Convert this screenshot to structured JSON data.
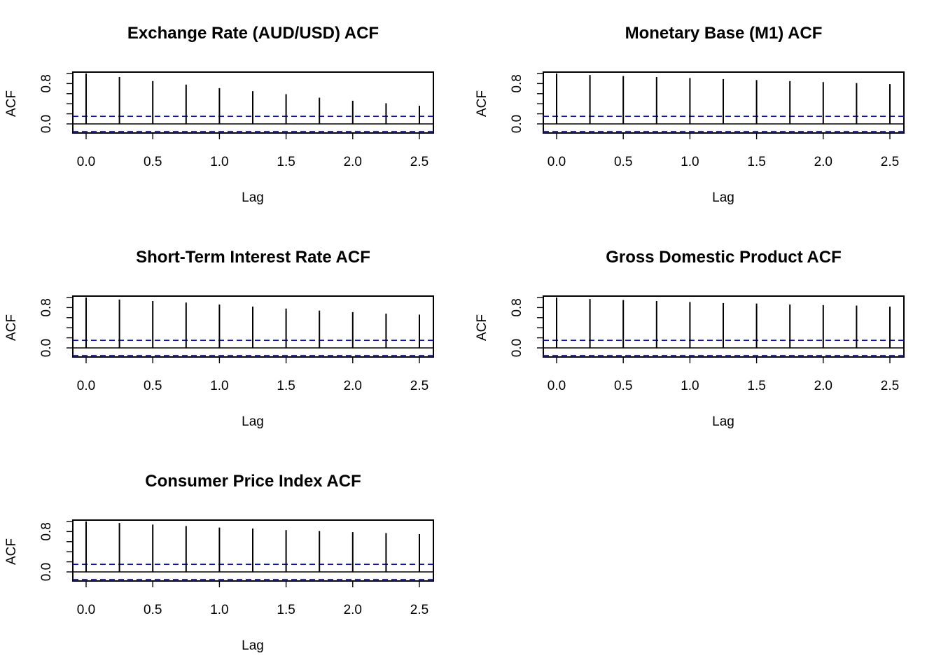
{
  "figure": {
    "background": "#ffffff",
    "ci_color": "#0000ff",
    "line_color": "#000000"
  },
  "chart_data": [
    {
      "type": "bar",
      "title": "Exchange Rate (AUD/USD) ACF",
      "xlabel": "Lag",
      "ylabel": "ACF",
      "xlim": [
        -0.1,
        2.6
      ],
      "ylim": [
        -0.17,
        1.0
      ],
      "xticks": [
        "0.0",
        "0.5",
        "1.0",
        "1.5",
        "2.0",
        "2.5"
      ],
      "yticks": [
        "0.0",
        "0.8"
      ],
      "lags": [
        0,
        0.25,
        0.5,
        0.75,
        1.0,
        1.25,
        1.5,
        1.75,
        2.0,
        2.25,
        2.5
      ],
      "acf": [
        1.0,
        0.93,
        0.85,
        0.78,
        0.71,
        0.65,
        0.59,
        0.52,
        0.46,
        0.41,
        0.36
      ],
      "ci": 0.15
    },
    {
      "type": "bar",
      "title": "Monetary Base (M1) ACF",
      "xlabel": "Lag",
      "ylabel": "ACF",
      "xlim": [
        -0.1,
        2.6
      ],
      "ylim": [
        -0.17,
        1.0
      ],
      "xticks": [
        "0.0",
        "0.5",
        "1.0",
        "1.5",
        "2.0",
        "2.5"
      ],
      "yticks": [
        "0.0",
        "0.8"
      ],
      "lags": [
        0,
        0.25,
        0.5,
        0.75,
        1.0,
        1.25,
        1.5,
        1.75,
        2.0,
        2.25,
        2.5
      ],
      "acf": [
        1.0,
        0.97,
        0.95,
        0.93,
        0.91,
        0.89,
        0.87,
        0.85,
        0.83,
        0.81,
        0.79
      ],
      "ci": 0.15
    },
    {
      "type": "bar",
      "title": "Short-Term Interest Rate ACF",
      "xlabel": "Lag",
      "ylabel": "ACF",
      "xlim": [
        -0.1,
        2.6
      ],
      "ylim": [
        -0.17,
        1.0
      ],
      "xticks": [
        "0.0",
        "0.5",
        "1.0",
        "1.5",
        "2.0",
        "2.5"
      ],
      "yticks": [
        "0.0",
        "0.8"
      ],
      "lags": [
        0,
        0.25,
        0.5,
        0.75,
        1.0,
        1.25,
        1.5,
        1.75,
        2.0,
        2.25,
        2.5
      ],
      "acf": [
        1.0,
        0.96,
        0.93,
        0.9,
        0.86,
        0.82,
        0.78,
        0.74,
        0.71,
        0.68,
        0.66
      ],
      "ci": 0.15
    },
    {
      "type": "bar",
      "title": "Gross Domestic Product ACF",
      "xlabel": "Lag",
      "ylabel": "ACF",
      "xlim": [
        -0.1,
        2.6
      ],
      "ylim": [
        -0.17,
        1.0
      ],
      "xticks": [
        "0.0",
        "0.5",
        "1.0",
        "1.5",
        "2.0",
        "2.5"
      ],
      "yticks": [
        "0.0",
        "0.8"
      ],
      "lags": [
        0,
        0.25,
        0.5,
        0.75,
        1.0,
        1.25,
        1.5,
        1.75,
        2.0,
        2.25,
        2.5
      ],
      "acf": [
        1.0,
        0.97,
        0.95,
        0.93,
        0.91,
        0.89,
        0.88,
        0.86,
        0.85,
        0.84,
        0.82
      ],
      "ci": 0.15
    },
    {
      "type": "bar",
      "title": "Consumer Price Index ACF",
      "xlabel": "Lag",
      "ylabel": "ACF",
      "xlim": [
        -0.1,
        2.6
      ],
      "ylim": [
        -0.17,
        1.0
      ],
      "xticks": [
        "0.0",
        "0.5",
        "1.0",
        "1.5",
        "2.0",
        "2.5"
      ],
      "yticks": [
        "0.0",
        "0.8"
      ],
      "lags": [
        0,
        0.25,
        0.5,
        0.75,
        1.0,
        1.25,
        1.5,
        1.75,
        2.0,
        2.25,
        2.5
      ],
      "acf": [
        1.0,
        0.97,
        0.94,
        0.91,
        0.88,
        0.86,
        0.83,
        0.81,
        0.79,
        0.77,
        0.75
      ],
      "ci": 0.15
    }
  ]
}
